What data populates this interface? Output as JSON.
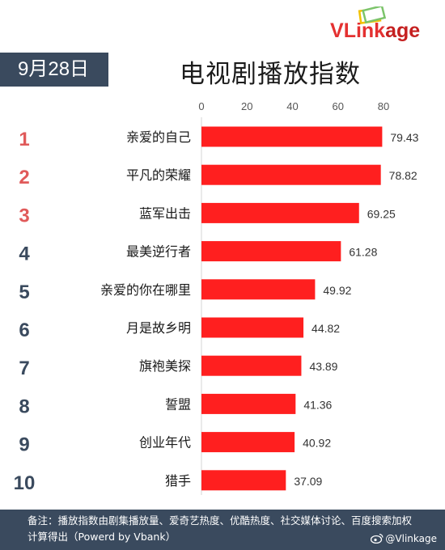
{
  "brand": "VLinkage",
  "date": "9月28日",
  "chart_data": {
    "type": "bar",
    "orientation": "horizontal",
    "title": "电视剧播放指数",
    "ranks": [
      "1",
      "2",
      "3",
      "4",
      "5",
      "6",
      "7",
      "8",
      "9",
      "10"
    ],
    "categories": [
      "亲爱的自己",
      "平凡的荣耀",
      "蓝军出击",
      "最美逆行者",
      "亲爱的你在哪里",
      "月是故乡明",
      "旗袍美探",
      "誓盟",
      "创业年代",
      "猎手"
    ],
    "values": [
      79.43,
      78.82,
      69.25,
      61.28,
      49.92,
      44.82,
      43.89,
      41.36,
      40.92,
      37.09
    ],
    "xticks": [
      0,
      20,
      40,
      60,
      80
    ],
    "xlim": [
      0,
      80
    ],
    "grid": false,
    "bar_color": "#ff1f1f",
    "top_rank_color": "#e05a5a",
    "rank_color": "#3a4a5e"
  },
  "footer": {
    "note": "备注：播放指数由剧集播放量、爱奇艺热度、优酷热度、社交媒体讨论、百度搜索加权计算得出（Powerd by Vbank）",
    "weibo": "@Vlinkage"
  }
}
